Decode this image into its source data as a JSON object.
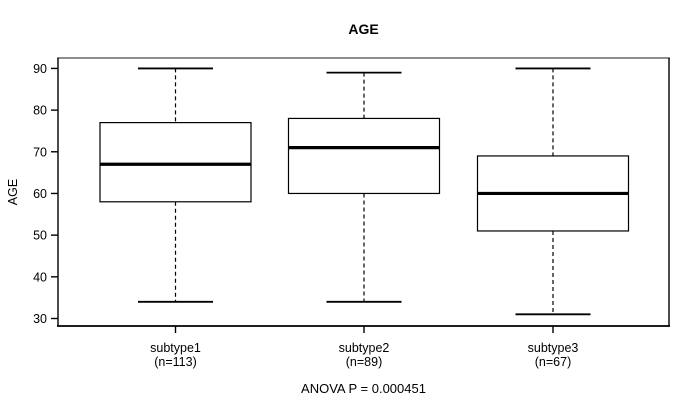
{
  "title": "AGE",
  "y_axis": {
    "label": "AGE"
  },
  "footer": {
    "text": "ANOVA P = 0.000451"
  },
  "chart_data": {
    "type": "boxplot",
    "title": "AGE",
    "xlabel": "",
    "ylabel": "AGE",
    "ylim": [
      28.2,
      92.5
    ],
    "yticks": [
      30,
      40,
      50,
      60,
      70,
      80,
      90
    ],
    "grid": false,
    "annotation": "ANOVA P = 0.000451",
    "groups": [
      {
        "label": "subtype1",
        "sublabel": "(n=113)",
        "n": 113,
        "min": 34,
        "q1": 58,
        "median": 67,
        "q3": 77,
        "max": 90
      },
      {
        "label": "subtype2",
        "sublabel": "(n=89)",
        "n": 89,
        "min": 34,
        "q1": 60,
        "median": 71,
        "q3": 78,
        "max": 89
      },
      {
        "label": "subtype3",
        "sublabel": "(n=67)",
        "n": 67,
        "min": 31,
        "q1": 51,
        "median": 60,
        "q3": 69,
        "max": 90
      }
    ],
    "colors": {
      "stroke": "#000000",
      "frame_top": "#8e8e8e",
      "background": "#ffffff"
    }
  }
}
